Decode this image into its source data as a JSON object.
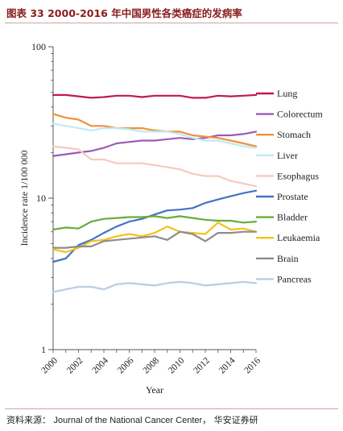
{
  "header": {
    "title": "图表 33 2000-2016 年中国男性各类癌症的发病率"
  },
  "footer": {
    "source_label": "资料来源：",
    "source_text": "Journal of the National Cancer Center，",
    "brand": "华安证券研"
  },
  "chart_data": {
    "type": "line",
    "title": "",
    "xlabel": "Year",
    "ylabel": "Incidence rate 1/100 000",
    "yscale": "log",
    "ylim": [
      1,
      100
    ],
    "xlim": [
      2000,
      2016
    ],
    "y_ticks": [
      "1",
      "10",
      "100"
    ],
    "x_ticks": [
      "2000",
      "2002",
      "2004",
      "2006",
      "2008",
      "2010",
      "2012",
      "2014",
      "2016"
    ],
    "x": [
      2000,
      2001,
      2002,
      2003,
      2004,
      2005,
      2006,
      2007,
      2008,
      2009,
      2010,
      2011,
      2012,
      2013,
      2014,
      2015,
      2016
    ],
    "legend_position": "right",
    "series": [
      {
        "name": "Lung",
        "color": "#c0185a",
        "values": [
          48,
          48,
          47,
          46,
          46.5,
          47.5,
          47.5,
          46.5,
          47.5,
          47.5,
          47.5,
          46,
          46,
          47.5,
          47,
          47.5,
          48
        ]
      },
      {
        "name": "Colorectum",
        "color": "#9b5bb5",
        "values": [
          19,
          19.5,
          20,
          20.5,
          21.5,
          23,
          23.5,
          24,
          24,
          24.5,
          25,
          24.5,
          25,
          26,
          26,
          26.5,
          27.5
        ]
      },
      {
        "name": "Stomach",
        "color": "#f0903a",
        "values": [
          36,
          34,
          33,
          30,
          30,
          29,
          29,
          29,
          28,
          27.5,
          27.5,
          26,
          25.5,
          25,
          24,
          23,
          22
        ]
      },
      {
        "name": "Liver",
        "color": "#bfeaf2",
        "values": [
          31,
          30,
          29,
          28,
          29,
          29,
          28.5,
          27.5,
          27.5,
          27.5,
          26.5,
          25,
          24,
          24,
          23,
          22,
          21.5
        ]
      },
      {
        "name": "Esophagus",
        "color": "#f6c9bf",
        "values": [
          22,
          21.5,
          21,
          18,
          18,
          17,
          17,
          17,
          16.5,
          16,
          15.5,
          14.5,
          14,
          14,
          13,
          12.5,
          12
        ]
      },
      {
        "name": "Prostate",
        "color": "#4472c4",
        "values": [
          3.8,
          4.0,
          4.9,
          5.3,
          5.9,
          6.5,
          7.0,
          7.3,
          7.8,
          8.3,
          8.4,
          8.6,
          9.3,
          9.8,
          10.3,
          10.8,
          11.2
        ]
      },
      {
        "name": "Bladder",
        "color": "#6aab3a",
        "values": [
          6.2,
          6.4,
          6.3,
          7.0,
          7.3,
          7.4,
          7.5,
          7.5,
          7.6,
          7.4,
          7.6,
          7.4,
          7.2,
          7.1,
          7.1,
          6.9,
          7.0
        ]
      },
      {
        "name": "Leukaemia",
        "color": "#f4c21a",
        "values": [
          4.6,
          4.4,
          4.7,
          5.2,
          5.3,
          5.6,
          5.8,
          5.6,
          5.9,
          6.5,
          6.0,
          5.9,
          5.8,
          6.9,
          6.2,
          6.3,
          6.0
        ]
      },
      {
        "name": "Brain",
        "color": "#8c8c8c",
        "values": [
          4.7,
          4.7,
          4.8,
          4.8,
          5.2,
          5.3,
          5.4,
          5.5,
          5.6,
          5.3,
          6.0,
          5.8,
          5.2,
          5.9,
          5.9,
          6.0,
          6.0
        ]
      },
      {
        "name": "Pancreas",
        "color": "#b9cde6",
        "values": [
          2.4,
          2.5,
          2.6,
          2.6,
          2.5,
          2.7,
          2.75,
          2.7,
          2.65,
          2.75,
          2.8,
          2.75,
          2.65,
          2.7,
          2.75,
          2.8,
          2.75
        ]
      }
    ]
  }
}
